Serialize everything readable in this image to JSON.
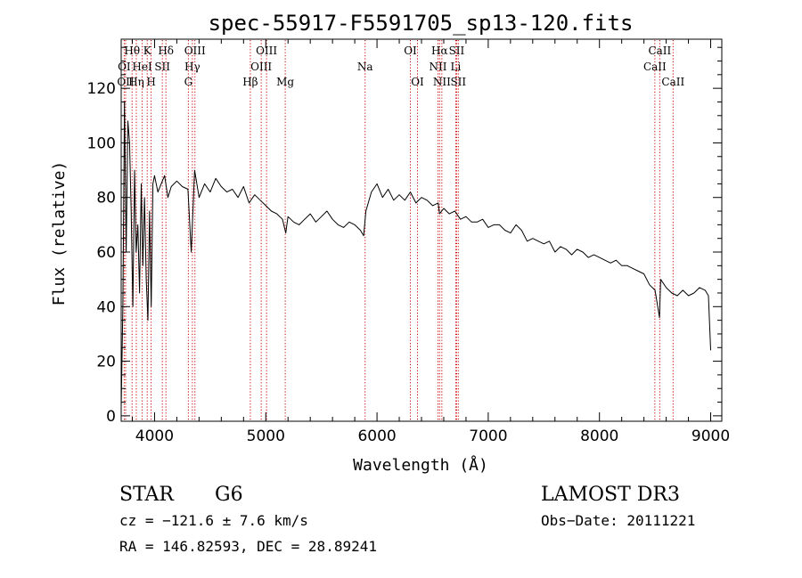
{
  "chart_data": {
    "type": "line",
    "title": "spec-55917-F5591705_sp13-120.fits",
    "xlabel": "Wavelength (Å)",
    "ylabel": "Flux (relative)",
    "xlim": [
      3700,
      9100
    ],
    "ylim": [
      -2,
      138
    ],
    "xticks": [
      4000,
      5000,
      6000,
      7000,
      8000,
      9000
    ],
    "yticks": [
      0,
      20,
      40,
      60,
      80,
      100,
      120
    ],
    "series": [
      {
        "name": "flux",
        "x": [
          3700,
          3715,
          3730,
          3745,
          3760,
          3775,
          3790,
          3805,
          3820,
          3835,
          3850,
          3865,
          3880,
          3895,
          3910,
          3925,
          3940,
          3955,
          3970,
          3985,
          4000,
          4030,
          4060,
          4090,
          4120,
          4150,
          4200,
          4250,
          4300,
          4330,
          4360,
          4400,
          4450,
          4500,
          4550,
          4600,
          4650,
          4700,
          4750,
          4800,
          4850,
          4900,
          4950,
          5000,
          5050,
          5100,
          5150,
          5180,
          5200,
          5250,
          5300,
          5350,
          5400,
          5450,
          5500,
          5550,
          5600,
          5650,
          5700,
          5750,
          5800,
          5850,
          5880,
          5900,
          5950,
          6000,
          6050,
          6100,
          6150,
          6200,
          6250,
          6300,
          6350,
          6400,
          6450,
          6500,
          6550,
          6563,
          6600,
          6650,
          6700,
          6750,
          6800,
          6850,
          6900,
          6950,
          7000,
          7050,
          7100,
          7150,
          7200,
          7250,
          7300,
          7350,
          7400,
          7450,
          7500,
          7550,
          7600,
          7650,
          7700,
          7750,
          7800,
          7850,
          7900,
          7950,
          8000,
          8050,
          8100,
          8150,
          8200,
          8250,
          8300,
          8350,
          8400,
          8450,
          8500,
          8540,
          8550,
          8600,
          8650,
          8700,
          8750,
          8800,
          8850,
          8900,
          8950,
          8980,
          9000
        ],
        "values": [
          3,
          40,
          115,
          60,
          108,
          100,
          75,
          40,
          90,
          60,
          70,
          45,
          85,
          55,
          80,
          50,
          35,
          75,
          40,
          85,
          88,
          82,
          85,
          88,
          80,
          84,
          86,
          84,
          83,
          60,
          90,
          80,
          85,
          82,
          87,
          84,
          82,
          83,
          80,
          84,
          78,
          81,
          79,
          77,
          75,
          74,
          72,
          67,
          73,
          71,
          70,
          72,
          74,
          71,
          73,
          75,
          72,
          70,
          69,
          71,
          70,
          68,
          66,
          75,
          82,
          85,
          80,
          83,
          79,
          81,
          79,
          82,
          78,
          80,
          79,
          77,
          78,
          74,
          76,
          74,
          75,
          72,
          73,
          71,
          71,
          72,
          69,
          70,
          70,
          68,
          67,
          70,
          68,
          64,
          65,
          64,
          63,
          64,
          60,
          62,
          61,
          59,
          61,
          60,
          58,
          59,
          58,
          57,
          56,
          57,
          55,
          55,
          54,
          53,
          52,
          48,
          46,
          36,
          50,
          47,
          45,
          44,
          46,
          44,
          45,
          47,
          46,
          44,
          24
        ]
      }
    ],
    "spectral_lines": [
      {
        "label": "Hθ",
        "wl": 3798,
        "row": 0
      },
      {
        "label": "K",
        "wl": 3934,
        "row": 0
      },
      {
        "label": "Hδ",
        "wl": 4102,
        "row": 0
      },
      {
        "label": "OIII",
        "wl": 4363,
        "row": 0
      },
      {
        "label": "OIII",
        "wl": 5007,
        "row": 0
      },
      {
        "label": "OI",
        "wl": 6300,
        "row": 0
      },
      {
        "label": "Hα",
        "wl": 6563,
        "row": 0
      },
      {
        "label": "SII",
        "wl": 6716,
        "row": 0
      },
      {
        "label": "CaII",
        "wl": 8542,
        "row": 0
      },
      {
        "label": "OI",
        "wl": 3727,
        "row": 1
      },
      {
        "label": "HeI",
        "wl": 3889,
        "row": 1
      },
      {
        "label": "SII",
        "wl": 4070,
        "row": 1
      },
      {
        "label": "Hγ",
        "wl": 4340,
        "row": 1
      },
      {
        "label": "OIII",
        "wl": 4959,
        "row": 1
      },
      {
        "label": "Na",
        "wl": 5893,
        "row": 1
      },
      {
        "label": "NII",
        "wl": 6548,
        "row": 1
      },
      {
        "label": "Li",
        "wl": 6708,
        "row": 1
      },
      {
        "label": "CaII",
        "wl": 8498,
        "row": 1
      },
      {
        "label": "OII",
        "wl": 3740,
        "row": 2
      },
      {
        "label": "Hη",
        "wl": 3836,
        "row": 2
      },
      {
        "label": "H",
        "wl": 3969,
        "row": 2
      },
      {
        "label": "G",
        "wl": 4304,
        "row": 2
      },
      {
        "label": "Hβ",
        "wl": 4861,
        "row": 2
      },
      {
        "label": "Mg",
        "wl": 5175,
        "row": 2
      },
      {
        "label": "OI",
        "wl": 6364,
        "row": 2
      },
      {
        "label": "NII",
        "wl": 6583,
        "row": 2
      },
      {
        "label": "SII",
        "wl": 6731,
        "row": 2
      },
      {
        "label": "CaII",
        "wl": 8662,
        "row": 2
      }
    ]
  },
  "info": {
    "class_label": "STAR",
    "subclass": "G6",
    "survey": "LAMOST DR3",
    "redshift": "cz = −121.6 ± 7.6 km/s",
    "obs_date": "Obs−Date: 20111221",
    "coords": "RA = 146.82593, DEC =  28.89241"
  },
  "colors": {
    "line_marker": "#cc0000",
    "spectrum": "#000000"
  }
}
